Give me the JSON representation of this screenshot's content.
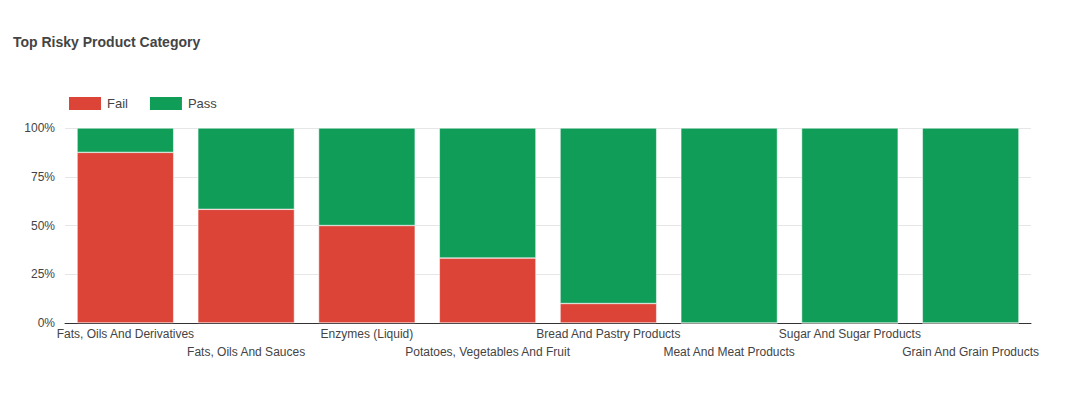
{
  "chart_data": {
    "type": "bar",
    "title": "Top Risky Product Category",
    "categories": [
      "Fats, Oils And Derivatives",
      "Fats, Oils And Sauces",
      "Enzymes (Liquid)",
      "Potatoes, Vegetables And Fruit",
      "Bread And Pastry Products",
      "Meat And Meat Products",
      "Sugar And Sugar Products",
      "Grain And Grain Products"
    ],
    "series": [
      {
        "name": "Fail",
        "color": "#db4437",
        "values": [
          87.5,
          58.3,
          50,
          33.3,
          10,
          0,
          0,
          0
        ]
      },
      {
        "name": "Pass",
        "color": "#0f9d58",
        "values": [
          12.5,
          41.7,
          50,
          66.7,
          90,
          100,
          100,
          100
        ]
      }
    ],
    "stacked": true,
    "ylim": [
      0,
      100
    ],
    "yticks": [
      {
        "value": 0,
        "label": "0%"
      },
      {
        "value": 25,
        "label": "25%"
      },
      {
        "value": 50,
        "label": "50%"
      },
      {
        "value": 75,
        "label": "75%"
      },
      {
        "value": 100,
        "label": "100%"
      }
    ],
    "grid": true,
    "legend": "top-left"
  }
}
